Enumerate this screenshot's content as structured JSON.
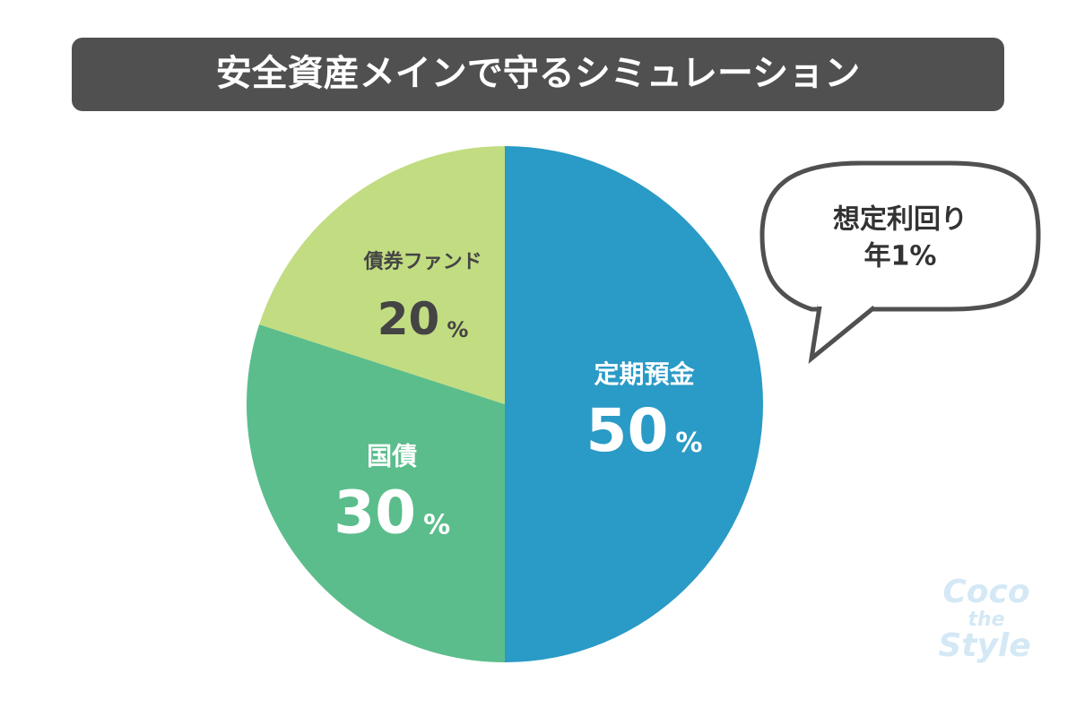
{
  "chart_data": {
    "type": "pie",
    "title": "安全資産メインで守るシミュレーション",
    "categories": [
      "定期預金",
      "国債",
      "債券ファンド"
    ],
    "values": [
      50,
      30,
      20
    ],
    "value_labels": [
      "50%",
      "30%",
      "20%"
    ],
    "colors": [
      "#2a9ac6",
      "#5bbd8c",
      "#c2dc82"
    ],
    "label_colors": [
      "#ffffff",
      "#ffffff",
      "#444444"
    ],
    "annotation": [
      "想定利回り",
      "年1%"
    ],
    "watermark": [
      "Coco",
      "the",
      "Style"
    ]
  }
}
